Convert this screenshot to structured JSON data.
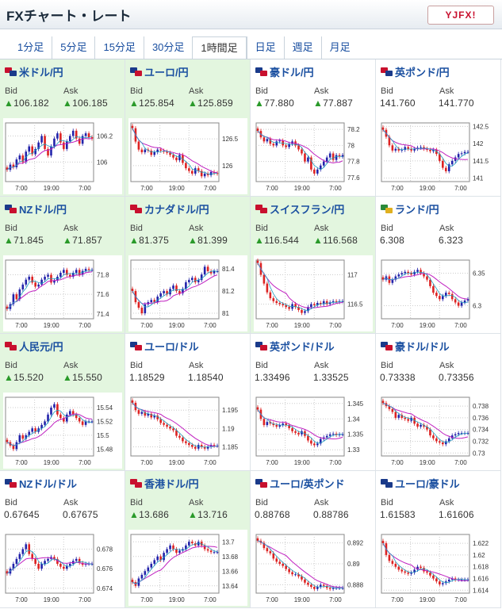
{
  "header": {
    "title": "FXチャート・レート",
    "logo": "YJFX!"
  },
  "tabs": [
    {
      "label": "1分足",
      "active": false
    },
    {
      "label": "5分足",
      "active": false
    },
    {
      "label": "15分足",
      "active": false
    },
    {
      "label": "30分足",
      "active": false
    },
    {
      "label": "1時間足",
      "active": true
    },
    {
      "label": "日足",
      "active": false
    },
    {
      "label": "週足",
      "active": false
    },
    {
      "label": "月足",
      "active": false
    }
  ],
  "labels": {
    "bid": "Bid",
    "ask": "Ask",
    "up_arrow": "▲"
  },
  "colors": {
    "up_candle": "#2222aa",
    "down_candle": "#dd2222",
    "ma": "#c020c0",
    "ma2": "#20a0c0",
    "highlight": "#e3f6df",
    "link": "#1a4fa0"
  },
  "pairs": [
    {
      "name": "米ドル/円",
      "bid": "106.182",
      "ask": "106.185",
      "up": true,
      "hl": true,
      "flags": [
        "#c8102e",
        "#1a3a8a"
      ],
      "yticks": [
        "106.2",
        "106"
      ],
      "ymax": 106.3,
      "ymin": 105.85,
      "xticks": [
        "7:00",
        "19:00",
        "7:00"
      ],
      "closes": [
        105.94,
        105.98,
        105.96,
        106.02,
        106.05,
        106.0,
        106.08,
        106.12,
        106.06,
        106.1,
        106.15,
        106.2,
        106.1,
        106.05,
        106.12,
        106.18,
        106.22,
        106.15,
        106.1,
        106.16,
        106.2,
        106.24,
        106.18,
        106.14,
        106.2,
        106.22,
        106.19,
        106.18
      ]
    },
    {
      "name": "ユーロ/円",
      "bid": "125.854",
      "ask": "125.859",
      "up": true,
      "hl": true,
      "flags": [
        "#1a3a8a",
        "#c8102e"
      ],
      "yticks": [
        "126.5",
        "126"
      ],
      "ymax": 126.8,
      "ymin": 125.7,
      "xticks": [
        "7:00",
        "19:00",
        "7:00"
      ],
      "closes": [
        126.7,
        126.45,
        126.3,
        126.25,
        126.3,
        126.28,
        126.2,
        126.25,
        126.3,
        126.28,
        126.26,
        126.24,
        126.2,
        126.15,
        126.1,
        126.2,
        126.05,
        125.95,
        125.9,
        125.85,
        125.95,
        125.9,
        125.8,
        125.85,
        125.82,
        125.88,
        125.86,
        125.85
      ]
    },
    {
      "name": "豪ドル/円",
      "bid": "77.880",
      "ask": "77.887",
      "up": true,
      "hl": false,
      "flags": [
        "#1a3a8a",
        "#c8102e"
      ],
      "yticks": [
        "78.2",
        "78",
        "77.8",
        "77.6"
      ],
      "ymax": 78.28,
      "ymin": 77.55,
      "xticks": [
        "7:00",
        "19:00",
        "7:00"
      ],
      "closes": [
        78.18,
        78.1,
        78.05,
        78.08,
        78.02,
        78.0,
        78.05,
        78.06,
        78.0,
        77.98,
        78.02,
        78.05,
        78.0,
        77.95,
        77.9,
        77.8,
        77.85,
        77.7,
        77.65,
        77.7,
        77.75,
        77.8,
        77.85,
        77.9,
        77.82,
        77.88,
        77.86,
        77.88
      ]
    },
    {
      "name": "英ポンド/円",
      "bid": "141.760",
      "ask": "141.770",
      "up": false,
      "hl": false,
      "flags": [
        "#c8102e",
        "#1a3a8a"
      ],
      "yticks": [
        "142.5",
        "142",
        "141.5",
        "141"
      ],
      "ymax": 142.6,
      "ymin": 140.9,
      "xticks": [
        "7:00",
        "19:00",
        "7:00"
      ],
      "closes": [
        142.4,
        142.2,
        141.95,
        141.8,
        141.85,
        141.8,
        141.82,
        141.9,
        141.85,
        141.8,
        141.85,
        141.88,
        141.9,
        141.85,
        141.82,
        141.78,
        141.82,
        141.7,
        141.5,
        141.3,
        141.2,
        141.4,
        141.5,
        141.6,
        141.7,
        141.72,
        141.76,
        141.76
      ]
    },
    {
      "name": "NZドル/円",
      "bid": "71.845",
      "ask": "71.857",
      "up": true,
      "hl": true,
      "flags": [
        "#1a3a8a",
        "#c8102e"
      ],
      "yticks": [
        "71.8",
        "71.6",
        "71.4"
      ],
      "ymax": 71.95,
      "ymin": 71.35,
      "xticks": [
        "7:00",
        "19:00",
        "7:00"
      ],
      "closes": [
        71.45,
        71.5,
        71.6,
        71.55,
        71.65,
        71.7,
        71.75,
        71.78,
        71.72,
        71.68,
        71.7,
        71.75,
        71.78,
        71.8,
        71.72,
        71.74,
        71.78,
        71.82,
        71.85,
        71.8,
        71.78,
        71.82,
        71.85,
        71.8,
        71.84,
        71.86,
        71.85,
        71.85
      ]
    },
    {
      "name": "カナダドル/円",
      "bid": "81.375",
      "ask": "81.399",
      "up": true,
      "hl": true,
      "flags": [
        "#c8102e",
        "#c8102e"
      ],
      "yticks": [
        "81.4",
        "81.2",
        "81"
      ],
      "ymax": 81.48,
      "ymin": 80.95,
      "xticks": [
        "7:00",
        "19:00",
        "7:00"
      ],
      "closes": [
        81.2,
        81.1,
        81.05,
        81.0,
        81.08,
        81.1,
        81.12,
        81.1,
        81.15,
        81.18,
        81.2,
        81.17,
        81.22,
        81.25,
        81.2,
        81.18,
        81.22,
        81.28,
        81.3,
        81.32,
        81.28,
        81.3,
        81.35,
        81.42,
        81.38,
        81.36,
        81.38,
        81.38
      ]
    },
    {
      "name": "スイスフラン/円",
      "bid": "116.544",
      "ask": "116.568",
      "up": true,
      "hl": true,
      "flags": [
        "#c8102e",
        "#c8102e"
      ],
      "yticks": [
        "117",
        "116.5"
      ],
      "ymax": 117.25,
      "ymin": 116.25,
      "xticks": [
        "7:00",
        "19:00",
        "7:00"
      ],
      "closes": [
        117.2,
        117.0,
        116.85,
        116.7,
        116.6,
        116.55,
        116.52,
        116.5,
        116.48,
        116.45,
        116.42,
        116.5,
        116.45,
        116.4,
        116.35,
        116.38,
        116.45,
        116.5,
        116.48,
        116.52,
        116.5,
        116.55,
        116.5,
        116.53,
        116.55,
        116.54,
        116.55,
        116.55
      ]
    },
    {
      "name": "ランド/円",
      "bid": "6.308",
      "ask": "6.323",
      "up": false,
      "hl": false,
      "flags": [
        "#2a8a3a",
        "#e0b020"
      ],
      "yticks": [
        "6.35",
        "6.3"
      ],
      "ymax": 6.37,
      "ymin": 6.28,
      "xticks": [
        "7:00",
        "19:00",
        "7:00"
      ],
      "closes": [
        6.34,
        6.345,
        6.335,
        6.34,
        6.345,
        6.348,
        6.35,
        6.352,
        6.35,
        6.348,
        6.352,
        6.355,
        6.35,
        6.345,
        6.34,
        6.33,
        6.32,
        6.315,
        6.31,
        6.315,
        6.32,
        6.318,
        6.31,
        6.305,
        6.3,
        6.305,
        6.308,
        6.31
      ]
    },
    {
      "name": "人民元/円",
      "bid": "15.520",
      "ask": "15.550",
      "up": true,
      "hl": true,
      "flags": [
        "#c8102e",
        "#c8102e"
      ],
      "yticks": [
        "15.54",
        "15.52",
        "15.5",
        "15.48"
      ],
      "ymax": 15.555,
      "ymin": 15.47,
      "xticks": [
        "7:00",
        "19:00",
        "7:00"
      ],
      "closes": [
        15.49,
        15.485,
        15.48,
        15.49,
        15.5,
        15.495,
        15.5,
        15.505,
        15.51,
        15.505,
        15.51,
        15.515,
        15.52,
        15.53,
        15.54,
        15.545,
        15.53,
        15.525,
        15.52,
        15.53,
        15.535,
        15.53,
        15.525,
        15.52,
        15.515,
        15.52,
        15.52,
        15.52
      ]
    },
    {
      "name": "ユーロ/ドル",
      "bid": "1.18529",
      "ask": "1.18540",
      "up": false,
      "hl": false,
      "flags": [
        "#1a3a8a",
        "#c8102e"
      ],
      "yticks": [
        "1.195",
        "1.19",
        "1.185"
      ],
      "ymax": 1.1985,
      "ymin": 1.1825,
      "xticks": [
        "7:00",
        "19:00",
        "7:00"
      ],
      "closes": [
        1.197,
        1.195,
        1.194,
        1.1945,
        1.1935,
        1.194,
        1.193,
        1.1935,
        1.1925,
        1.1915,
        1.191,
        1.1905,
        1.19,
        1.1895,
        1.188,
        1.1875,
        1.1865,
        1.186,
        1.1855,
        1.185,
        1.1845,
        1.1855,
        1.185,
        1.1845,
        1.185,
        1.1855,
        1.1853,
        1.1853
      ]
    },
    {
      "name": "英ポンド/ドル",
      "bid": "1.33496",
      "ask": "1.33525",
      "up": false,
      "hl": false,
      "flags": [
        "#1a3a8a",
        "#c8102e"
      ],
      "yticks": [
        "1.345",
        "1.34",
        "1.335",
        "1.33"
      ],
      "ymax": 1.347,
      "ymin": 1.328,
      "xticks": [
        "7:00",
        "19:00",
        "7:00"
      ],
      "closes": [
        1.343,
        1.34,
        1.338,
        1.339,
        1.3385,
        1.338,
        1.3375,
        1.338,
        1.3385,
        1.338,
        1.337,
        1.336,
        1.3355,
        1.335,
        1.336,
        1.3345,
        1.333,
        1.332,
        1.3315,
        1.332,
        1.3335,
        1.334,
        1.3345,
        1.335,
        1.3352,
        1.3348,
        1.335,
        1.335
      ]
    },
    {
      "name": "豪ドル/ドル",
      "bid": "0.73338",
      "ask": "0.73356",
      "up": false,
      "hl": false,
      "flags": [
        "#1a3a8a",
        "#c8102e"
      ],
      "yticks": [
        "0.738",
        "0.736",
        "0.734",
        "0.732",
        "0.73"
      ],
      "ymax": 0.7395,
      "ymin": 0.7295,
      "xticks": [
        "7:00",
        "19:00",
        "7:00"
      ],
      "closes": [
        0.7385,
        0.738,
        0.7375,
        0.737,
        0.736,
        0.7365,
        0.736,
        0.7358,
        0.7355,
        0.736,
        0.735,
        0.7345,
        0.7348,
        0.7345,
        0.734,
        0.733,
        0.7325,
        0.732,
        0.7318,
        0.7315,
        0.732,
        0.7325,
        0.733,
        0.7332,
        0.7334,
        0.7334,
        0.7334,
        0.7334
      ]
    },
    {
      "name": "NZドル/ドル",
      "bid": "0.67645",
      "ask": "0.67675",
      "up": false,
      "hl": false,
      "flags": [
        "#1a3a8a",
        "#c8102e"
      ],
      "yticks": [
        "0.678",
        "0.676",
        "0.674"
      ],
      "ymax": 0.6795,
      "ymin": 0.6735,
      "xticks": [
        "7:00",
        "19:00",
        "7:00"
      ],
      "closes": [
        0.6755,
        0.676,
        0.6765,
        0.677,
        0.6775,
        0.678,
        0.6785,
        0.6775,
        0.677,
        0.6765,
        0.676,
        0.6765,
        0.6768,
        0.677,
        0.6772,
        0.677,
        0.6765,
        0.6762,
        0.676,
        0.6763,
        0.6765,
        0.6768,
        0.677,
        0.6766,
        0.6764,
        0.6765,
        0.6765,
        0.6765
      ]
    },
    {
      "name": "香港ドル/円",
      "bid": "13.686",
      "ask": "13.716",
      "up": true,
      "hl": true,
      "flags": [
        "#c8102e",
        "#c8102e"
      ],
      "yticks": [
        "13.7",
        "13.68",
        "13.66",
        "13.64"
      ],
      "ymax": 13.71,
      "ymin": 13.63,
      "xticks": [
        "7:00",
        "19:00",
        "7:00"
      ],
      "closes": [
        13.645,
        13.64,
        13.65,
        13.655,
        13.66,
        13.665,
        13.67,
        13.675,
        13.68,
        13.675,
        13.685,
        13.69,
        13.695,
        13.69,
        13.685,
        13.688,
        13.69,
        13.695,
        13.7,
        13.698,
        13.695,
        13.7,
        13.695,
        13.69,
        13.688,
        13.686,
        13.686,
        13.686
      ]
    },
    {
      "name": "ユーロ/英ポンド",
      "bid": "0.88768",
      "ask": "0.88786",
      "up": false,
      "hl": false,
      "flags": [
        "#1a3a8a",
        "#c8102e"
      ],
      "yticks": [
        "0.892",
        "0.89",
        "0.888"
      ],
      "ymax": 0.8928,
      "ymin": 0.8872,
      "xticks": [
        "7:00",
        "19:00",
        "7:00"
      ],
      "closes": [
        0.8922,
        0.892,
        0.8915,
        0.8912,
        0.891,
        0.8905,
        0.8902,
        0.89,
        0.8898,
        0.8895,
        0.8892,
        0.889,
        0.889,
        0.8888,
        0.8885,
        0.8882,
        0.888,
        0.8878,
        0.8876,
        0.8878,
        0.888,
        0.8879,
        0.8877,
        0.8876,
        0.8877,
        0.8877,
        0.8877,
        0.8877
      ]
    },
    {
      "name": "ユーロ/豪ドル",
      "bid": "1.61583",
      "ask": "1.61606",
      "up": false,
      "hl": false,
      "flags": [
        "#1a3a8a",
        "#1a3a8a"
      ],
      "yticks": [
        "1.622",
        "1.62",
        "1.618",
        "1.616",
        "1.614"
      ],
      "ymax": 1.6235,
      "ymin": 1.6135,
      "xticks": [
        "7:00",
        "19:00",
        "7:00"
      ],
      "closes": [
        1.622,
        1.62,
        1.619,
        1.6185,
        1.618,
        1.6175,
        1.6172,
        1.617,
        1.6168,
        1.617,
        1.6175,
        1.618,
        1.6178,
        1.6172,
        1.617,
        1.6165,
        1.616,
        1.6155,
        1.615,
        1.6152,
        1.6155,
        1.6158,
        1.616,
        1.6158,
        1.6158,
        1.6158,
        1.6158,
        1.6158
      ]
    }
  ]
}
